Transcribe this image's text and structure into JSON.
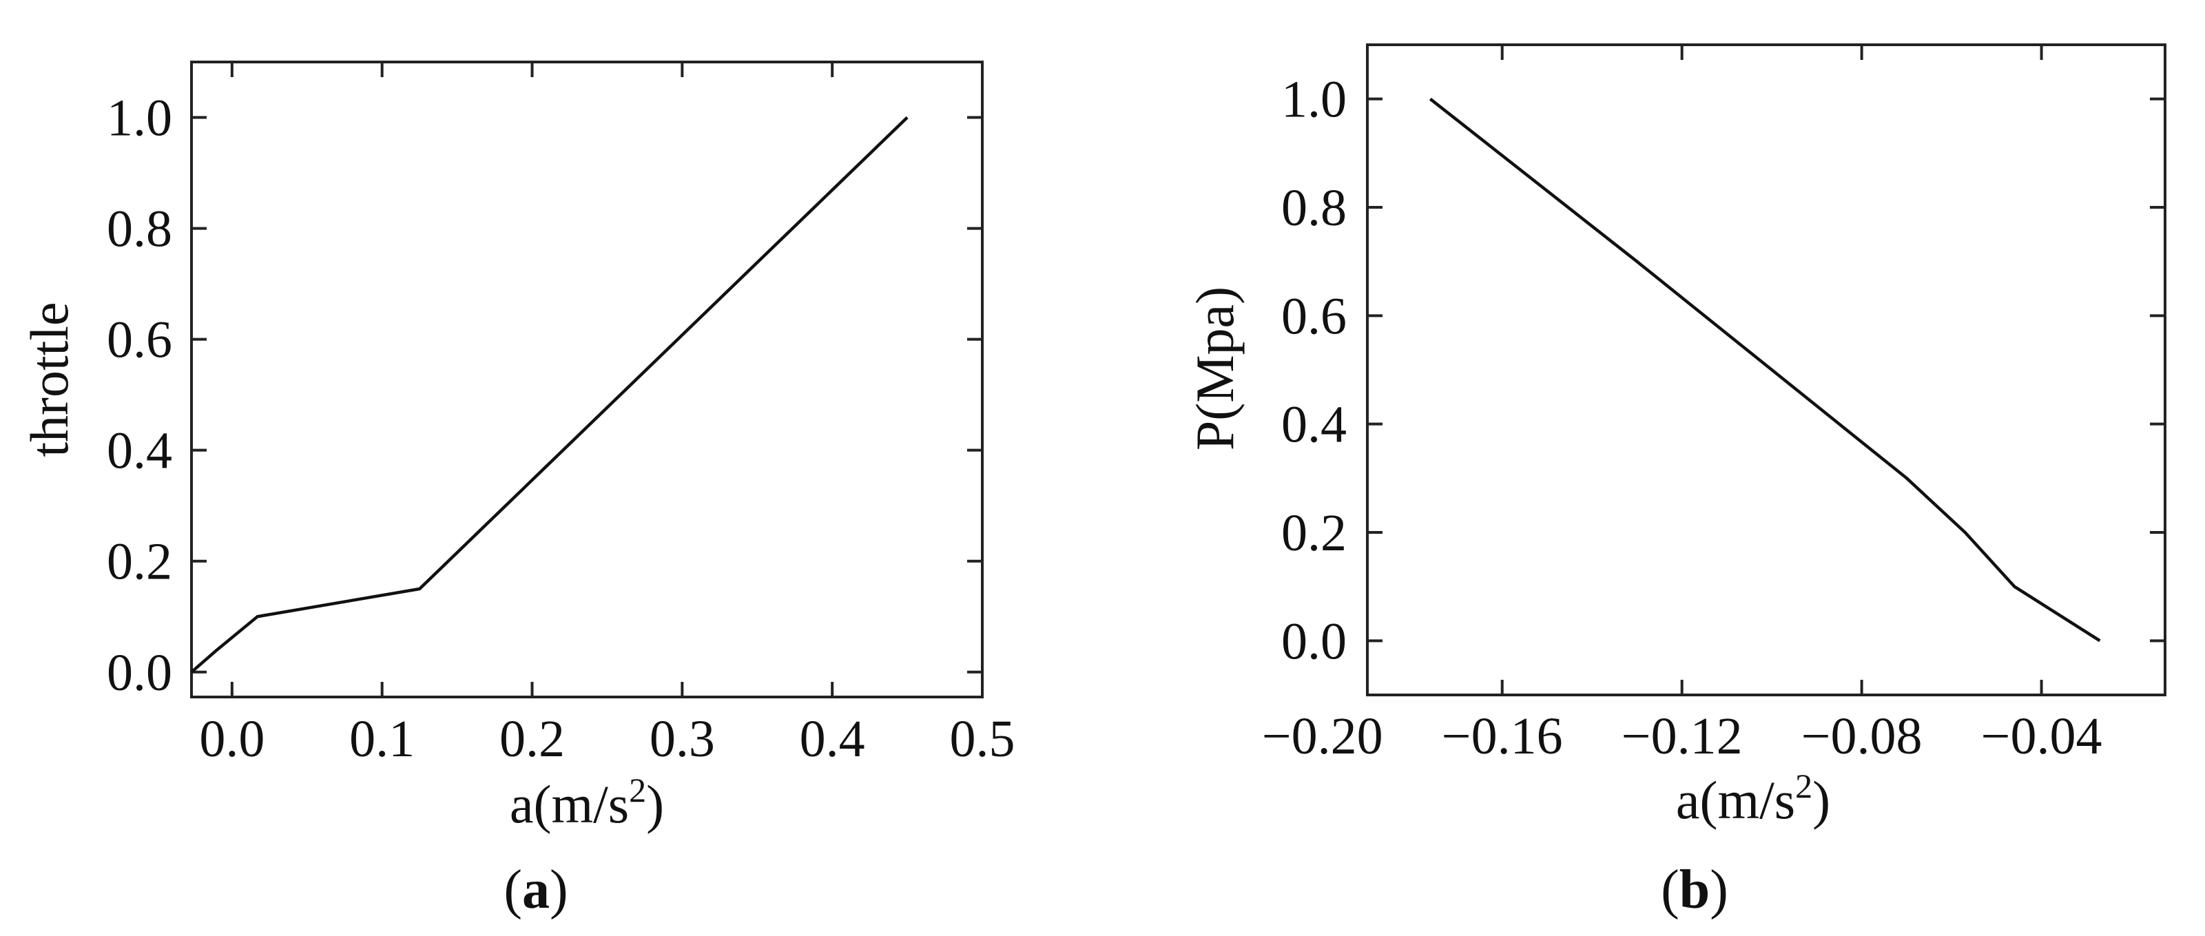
{
  "chart_data": [
    {
      "panel": "(a)",
      "panel_letter": "a",
      "type": "line",
      "xlabel": "a(m/s",
      "xlabel_sup": "2",
      "xlabel_tail": ")",
      "ylabel": "throttle",
      "xlim": [
        -0.027,
        0.5
      ],
      "ylim": [
        -0.045,
        1.1
      ],
      "xticks": [
        0.0,
        0.1,
        0.2,
        0.3,
        0.4,
        0.5
      ],
      "xtick_labels": [
        "0.0",
        "0.1",
        "0.2",
        "0.3",
        "0.4",
        "0.5"
      ],
      "yticks": [
        0.0,
        0.2,
        0.4,
        0.6,
        0.8,
        1.0
      ],
      "ytick_labels": [
        "0.0",
        "0.2",
        "0.4",
        "0.6",
        "0.8",
        "1.0"
      ],
      "grid": false,
      "series": [
        {
          "x": [
            -0.027,
            -0.01,
            0.017,
            0.125,
            0.45
          ],
          "y": [
            0.0,
            0.04,
            0.1,
            0.15,
            1.0
          ],
          "color": "#111111"
        }
      ]
    },
    {
      "panel": "(b)",
      "panel_letter": "b",
      "type": "line",
      "xlabel": "a(m/s",
      "xlabel_sup": "2",
      "xlabel_tail": ")",
      "ylabel": "P(Mpa)",
      "xlim": [
        -0.19,
        -0.0125
      ],
      "ylim": [
        -0.1,
        1.1
      ],
      "xticks": [
        -0.2,
        -0.16,
        -0.12,
        -0.08,
        -0.04
      ],
      "xtick_labels": [
        "−0.20",
        "−0.16",
        "−0.12",
        "−0.08",
        "−0.04"
      ],
      "yticks": [
        0.0,
        0.2,
        0.4,
        0.6,
        0.8,
        1.0
      ],
      "ytick_labels": [
        "0.0",
        "0.2",
        "0.4",
        "0.6",
        "0.8",
        "1.0"
      ],
      "grid": false,
      "series": [
        {
          "x": [
            -0.176,
            -0.13,
            -0.07,
            -0.057,
            -0.046,
            -0.027
          ],
          "y": [
            1.0,
            0.7,
            0.3,
            0.2,
            0.1,
            0.0
          ],
          "color": "#111111"
        }
      ]
    }
  ]
}
